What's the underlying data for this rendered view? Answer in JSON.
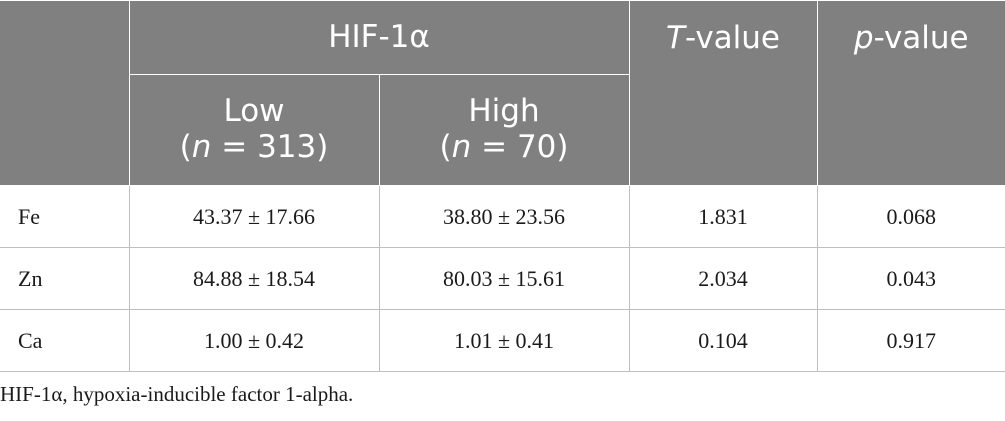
{
  "header": {
    "group_label": "HIF-1α",
    "t_value_prefix": "T",
    "t_value_suffix": "-value",
    "p_value_prefix": "p",
    "p_value_suffix": "-value",
    "low_label": "Low",
    "low_n_open": "(",
    "low_n_var": "n",
    "low_n_rest": " = 313)",
    "high_label": "High",
    "high_n_open": "(",
    "high_n_var": "n",
    "high_n_rest": " = 70)"
  },
  "rows": [
    {
      "element": "Fe",
      "low": "43.37 ± 17.66",
      "high": "38.80 ± 23.56",
      "t": "1.831",
      "p": "0.068"
    },
    {
      "element": "Zn",
      "low": "84.88 ± 18.54",
      "high": "80.03 ± 15.61",
      "t": "2.034",
      "p": "0.043"
    },
    {
      "element": "Ca",
      "low": "1.00 ± 0.42",
      "high": "1.01 ± 0.41",
      "t": "0.104",
      "p": "0.917"
    }
  ],
  "footnote": "HIF-1α, hypoxia-inducible factor 1-alpha.",
  "colors": {
    "header_background": "#808080",
    "header_text": "#ffffff",
    "body_text": "#1a1a1a",
    "grid_line": "#bfbfbf"
  }
}
